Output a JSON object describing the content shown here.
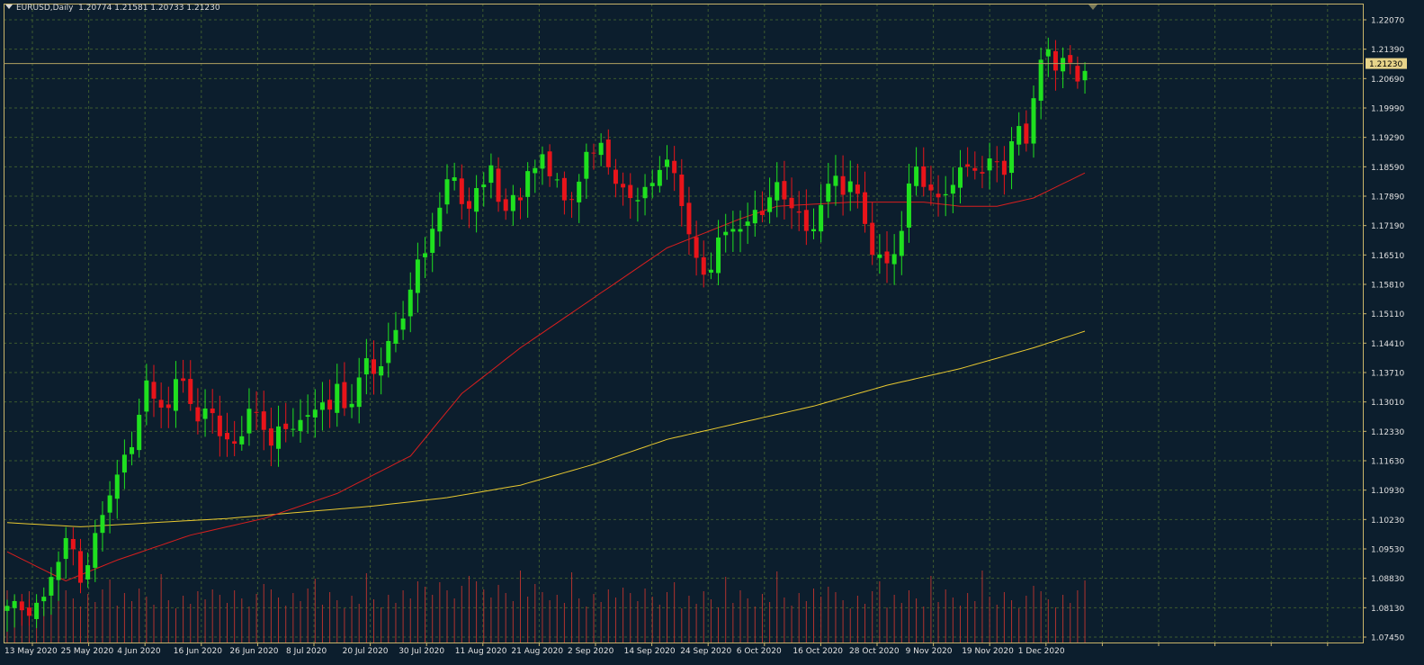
{
  "header": {
    "symbol_timeframe": "EURUSD,Daily",
    "ohlc": "1.20774 1.21581 1.20733 1.21230"
  },
  "colors": {
    "background": "#0c1e2d",
    "grid": "#3d5a2f",
    "axis": "#c8b36a",
    "bull": "#1fe01f",
    "bear": "#e8141a",
    "ma_fast": "#d81e1e",
    "ma_slow": "#e8c830",
    "volume": "#b0322e",
    "price_label_bg": "#e8d48a"
  },
  "chart_data": {
    "type": "candlestick",
    "symbol": "EURUSD",
    "timeframe": "Daily",
    "last_price": "1.21230",
    "price_axis_labels": [
      "1.22070",
      "1.21390",
      "1.20690",
      "1.19990",
      "1.19290",
      "1.18590",
      "1.17890",
      "1.17190",
      "1.16510",
      "1.15810",
      "1.15110",
      "1.14410",
      "1.13710",
      "1.13010",
      "1.12330",
      "1.11630",
      "1.10930",
      "1.10230",
      "1.09530",
      "1.08830",
      "1.08130",
      "1.07450"
    ],
    "date_axis_labels": [
      "13 May 2020",
      "25 May 2020",
      "4 Jun 2020",
      "16 Jun 2020",
      "26 Jun 2020",
      "8 Jul 2020",
      "20 Jul 2020",
      "30 Jul 2020",
      "11 Aug 2020",
      "21 Aug 2020",
      "2 Sep 2020",
      "14 Sep 2020",
      "24 Sep 2020",
      "6 Oct 2020",
      "16 Oct 2020",
      "28 Oct 2020",
      "9 Nov 2020",
      "19 Nov 2020",
      "1 Dec 2020"
    ],
    "ylim": [
      1.0745,
      1.2228
    ],
    "close_path": [
      [
        0,
        1.082
      ],
      [
        3,
        1.081
      ],
      [
        5,
        1.083
      ],
      [
        6,
        1.09
      ],
      [
        8,
        1.097
      ],
      [
        9,
        1.095
      ],
      [
        10,
        1.089
      ],
      [
        11,
        1.092
      ],
      [
        12,
        1.098
      ],
      [
        13,
        1.104
      ],
      [
        14,
        1.11
      ],
      [
        15,
        1.113
      ],
      [
        16,
        1.117
      ],
      [
        17,
        1.121
      ],
      [
        18,
        1.129
      ],
      [
        19,
        1.135
      ],
      [
        20,
        1.131
      ],
      [
        21,
        1.131
      ],
      [
        22,
        1.13
      ],
      [
        23,
        1.135
      ],
      [
        24,
        1.136
      ],
      [
        25,
        1.132
      ],
      [
        26,
        1.126
      ],
      [
        27,
        1.128
      ],
      [
        28,
        1.129
      ],
      [
        29,
        1.124
      ],
      [
        30,
        1.121
      ],
      [
        31,
        1.12
      ],
      [
        32,
        1.124
      ],
      [
        33,
        1.13
      ],
      [
        34,
        1.127
      ],
      [
        35,
        1.124
      ],
      [
        36,
        1.122
      ],
      [
        37,
        1.125
      ],
      [
        38,
        1.123
      ],
      [
        39,
        1.125
      ],
      [
        40,
        1.128
      ],
      [
        41,
        1.127
      ],
      [
        42,
        1.128
      ],
      [
        43,
        1.132
      ],
      [
        44,
        1.13
      ],
      [
        45,
        1.134
      ],
      [
        46,
        1.129
      ],
      [
        47,
        1.132
      ],
      [
        48,
        1.137
      ],
      [
        49,
        1.14
      ],
      [
        50,
        1.138
      ],
      [
        51,
        1.141
      ],
      [
        52,
        1.145
      ],
      [
        53,
        1.147
      ],
      [
        54,
        1.152
      ],
      [
        55,
        1.159
      ],
      [
        56,
        1.164
      ],
      [
        57,
        1.166
      ],
      [
        58,
        1.174
      ],
      [
        59,
        1.178
      ],
      [
        60,
        1.183
      ],
      [
        61,
        1.185
      ],
      [
        62,
        1.18
      ],
      [
        63,
        1.177
      ],
      [
        64,
        1.181
      ],
      [
        65,
        1.184
      ],
      [
        66,
        1.189
      ],
      [
        67,
        1.178
      ],
      [
        68,
        1.176
      ],
      [
        69,
        1.182
      ],
      [
        70,
        1.18
      ],
      [
        71,
        1.185
      ],
      [
        72,
        1.187
      ],
      [
        73,
        1.192
      ],
      [
        74,
        1.185
      ],
      [
        75,
        1.183
      ],
      [
        76,
        1.18
      ],
      [
        77,
        1.181
      ],
      [
        78,
        1.183
      ],
      [
        79,
        1.19
      ],
      [
        80,
        1.192
      ],
      [
        81,
        1.194
      ],
      [
        82,
        1.186
      ],
      [
        83,
        1.183
      ],
      [
        84,
        1.184
      ],
      [
        85,
        1.18
      ],
      [
        86,
        1.178
      ],
      [
        87,
        1.183
      ],
      [
        88,
        1.185
      ],
      [
        89,
        1.186
      ],
      [
        90,
        1.188
      ],
      [
        91,
        1.187
      ],
      [
        92,
        1.179
      ],
      [
        93,
        1.17
      ],
      [
        94,
        1.165
      ],
      [
        95,
        1.163
      ],
      [
        96,
        1.163
      ],
      [
        97,
        1.169
      ],
      [
        98,
        1.172
      ],
      [
        99,
        1.174
      ],
      [
        100,
        1.172
      ],
      [
        101,
        1.173
      ],
      [
        102,
        1.178
      ],
      [
        103,
        1.177
      ],
      [
        104,
        1.179
      ],
      [
        105,
        1.183
      ],
      [
        106,
        1.181
      ],
      [
        107,
        1.178
      ],
      [
        108,
        1.175
      ],
      [
        109,
        1.172
      ],
      [
        110,
        1.174
      ],
      [
        111,
        1.178
      ],
      [
        112,
        1.182
      ],
      [
        113,
        1.186
      ],
      [
        114,
        1.182
      ],
      [
        115,
        1.183
      ],
      [
        116,
        1.18
      ],
      [
        117,
        1.175
      ],
      [
        118,
        1.167
      ],
      [
        119,
        1.165
      ],
      [
        120,
        1.164
      ],
      [
        121,
        1.168
      ],
      [
        122,
        1.172
      ],
      [
        123,
        1.182
      ],
      [
        124,
        1.188
      ],
      [
        125,
        1.184
      ],
      [
        126,
        1.181
      ],
      [
        127,
        1.179
      ],
      [
        128,
        1.182
      ],
      [
        129,
        1.184
      ],
      [
        130,
        1.186
      ],
      [
        131,
        1.187
      ],
      [
        132,
        1.188
      ],
      [
        133,
        1.186
      ],
      [
        134,
        1.188
      ],
      [
        135,
        1.189
      ],
      [
        136,
        1.187
      ],
      [
        137,
        1.193
      ],
      [
        138,
        1.196
      ],
      [
        139,
        1.194
      ],
      [
        140,
        1.205
      ],
      [
        141,
        1.212
      ],
      [
        142,
        1.215
      ],
      [
        143,
        1.212
      ],
      [
        144,
        1.214
      ],
      [
        145,
        1.211
      ],
      [
        146,
        1.208
      ],
      [
        147,
        1.212
      ]
    ],
    "ma_fast_path": [
      [
        0,
        1.095
      ],
      [
        8,
        1.088
      ],
      [
        15,
        1.093
      ],
      [
        25,
        1.099
      ],
      [
        35,
        1.103
      ],
      [
        45,
        1.109
      ],
      [
        55,
        1.118
      ],
      [
        62,
        1.133
      ],
      [
        70,
        1.144
      ],
      [
        80,
        1.156
      ],
      [
        90,
        1.168
      ],
      [
        100,
        1.175
      ],
      [
        105,
        1.178
      ],
      [
        115,
        1.179
      ],
      [
        125,
        1.179
      ],
      [
        130,
        1.178
      ],
      [
        135,
        1.178
      ],
      [
        140,
        1.18
      ],
      [
        147,
        1.186
      ]
    ],
    "ma_slow_path": [
      [
        0,
        1.102
      ],
      [
        10,
        1.101
      ],
      [
        30,
        1.103
      ],
      [
        50,
        1.106
      ],
      [
        60,
        1.108
      ],
      [
        70,
        1.111
      ],
      [
        80,
        1.116
      ],
      [
        90,
        1.122
      ],
      [
        100,
        1.126
      ],
      [
        110,
        1.13
      ],
      [
        120,
        1.135
      ],
      [
        130,
        1.139
      ],
      [
        140,
        1.144
      ],
      [
        147,
        1.148
      ]
    ]
  }
}
